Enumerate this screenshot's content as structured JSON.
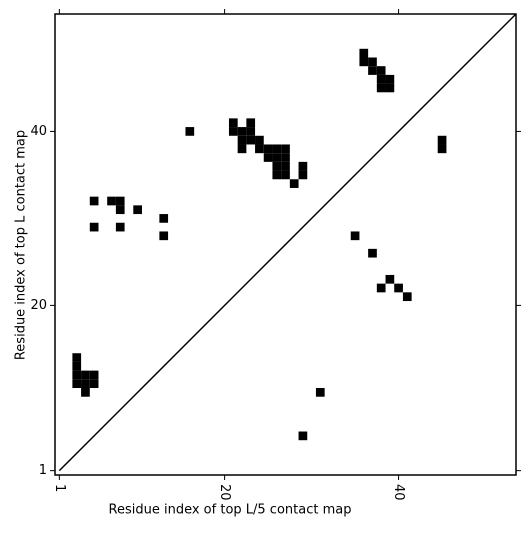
{
  "chart_data": {
    "type": "scatter",
    "marker": "square",
    "color": "#000000",
    "diagonal": true,
    "xlabel": "Residue index of top L/5 contact map",
    "ylabel": "Residue index of top L contact map",
    "xlim": [
      0.5,
      53.5
    ],
    "ylim": [
      0.5,
      53.5
    ],
    "xticks": [
      1,
      20,
      40
    ],
    "yticks": [
      1,
      20,
      40
    ],
    "series": [
      {
        "x": [
          3,
          3,
          3,
          3,
          4,
          4,
          4,
          5,
          5,
          31,
          29,
          5,
          5,
          7,
          8,
          8,
          10,
          8,
          13,
          13,
          16,
          21,
          21,
          22,
          22,
          22,
          23,
          23,
          23,
          24,
          24,
          25,
          25,
          26,
          26,
          26,
          26,
          27,
          27,
          27,
          27,
          28,
          29,
          29,
          36,
          36,
          37,
          37,
          38,
          38,
          38,
          39,
          39,
          45,
          45,
          35,
          37,
          39,
          38,
          40,
          41
        ],
        "y": [
          11,
          12,
          13,
          14,
          10,
          11,
          12,
          11,
          12,
          10,
          5,
          32,
          29,
          32,
          32,
          31,
          31,
          29,
          30,
          28,
          40,
          41,
          40,
          40,
          39,
          38,
          41,
          40,
          39,
          39,
          38,
          38,
          37,
          38,
          37,
          36,
          35,
          38,
          37,
          36,
          35,
          34,
          36,
          35,
          49,
          48,
          48,
          47,
          47,
          46,
          45,
          46,
          45,
          39,
          38,
          28,
          26,
          23,
          22,
          22,
          21
        ]
      }
    ]
  }
}
